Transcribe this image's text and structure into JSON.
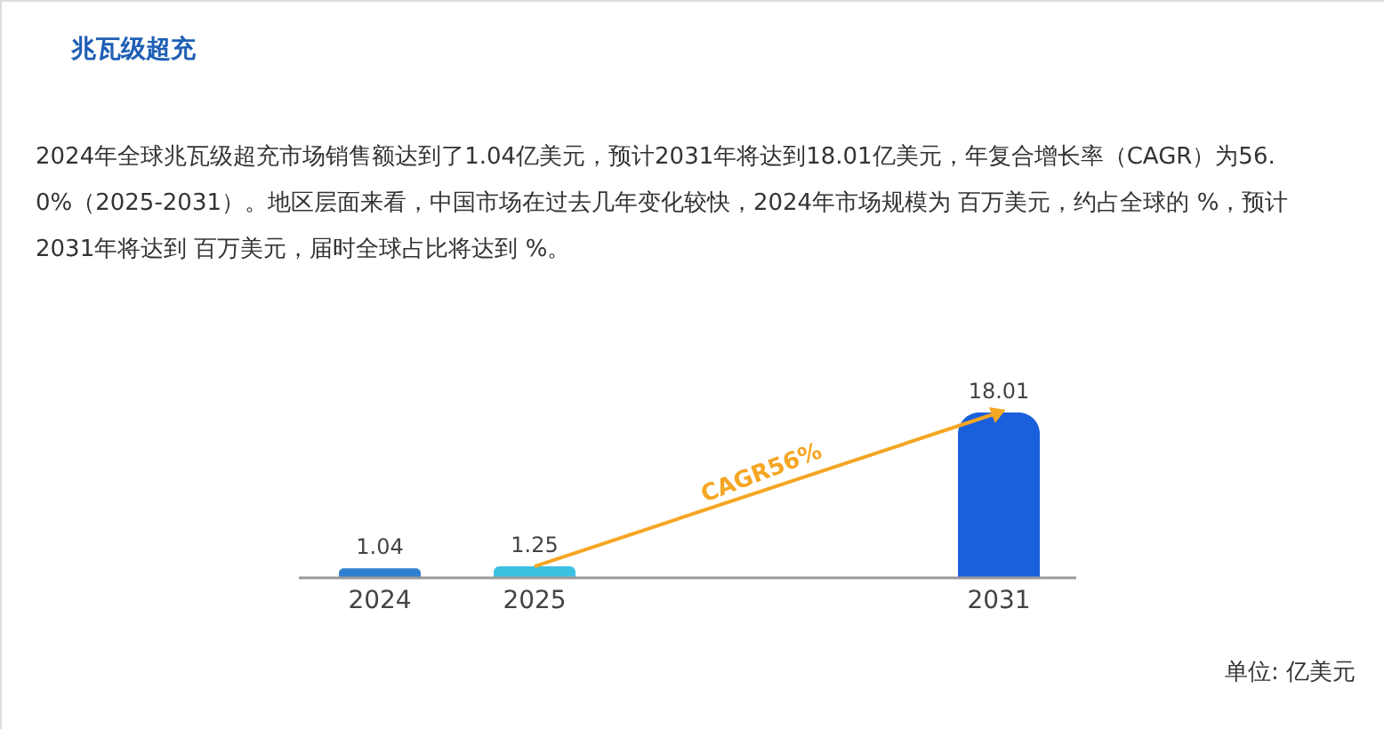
{
  "chart_data": {
    "type": "bar",
    "title": "兆瓦级超充",
    "subtitle": "2024年全球兆瓦级超充市场销售额达到了1.04亿美元，预计2031年将达到18.01亿美元，年复合增长率（CAGR）为56.0%（2025-2031）。地区层面来看，中国市场在过去几年变化较快，2024年市场规模为 百万美元，约占全球的 %，预计2031年将达到 百万美元，届时全球占比将达到 %。",
    "categories": [
      "2024",
      "2025",
      null,
      null,
      "2031"
    ],
    "values": [
      1.04,
      1.25,
      null,
      null,
      18.01
    ],
    "colors": [
      "#2f7fd1",
      "#3cc0e2",
      null,
      null,
      "#1a5fdc"
    ],
    "data_labels": true,
    "annotations": [
      "CAGR56%",
      "单位: 亿美元"
    ]
  }
}
